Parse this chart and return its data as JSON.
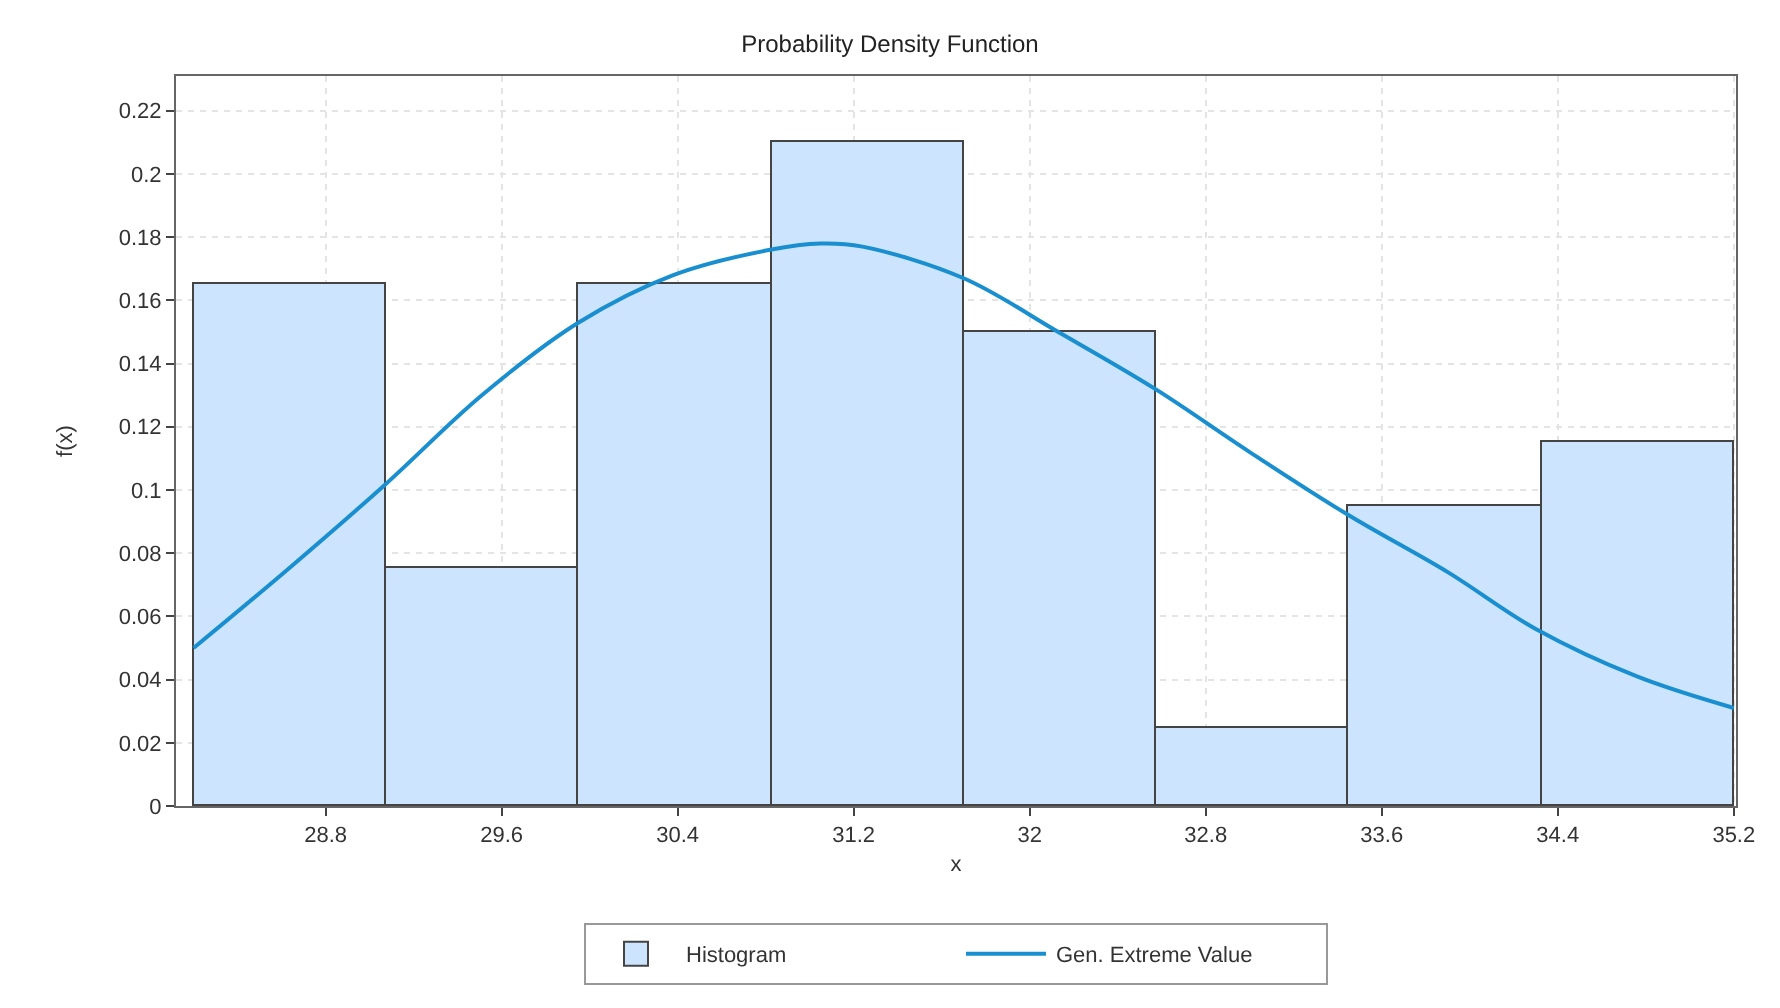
{
  "chart_data": {
    "type": "histogram",
    "title": "Probability Density Function",
    "xlabel": "x",
    "ylabel": "f(x)",
    "xlim": [
      28.12,
      35.21
    ],
    "ylim": [
      0,
      0.231
    ],
    "xticks": [
      28.8,
      29.6,
      30.4,
      31.2,
      32,
      32.8,
      33.6,
      34.4,
      35.2
    ],
    "yticks": [
      0,
      0.02,
      0.04,
      0.06,
      0.08,
      0.1,
      0.12,
      0.14,
      0.16,
      0.18,
      0.2,
      0.22
    ],
    "grid": true,
    "legend": "bottom",
    "series": [
      {
        "name": "Histogram",
        "color": "#cce4fd",
        "bins": [
          28.2,
          29.075,
          29.95,
          30.825,
          31.7,
          32.575,
          33.45,
          34.325,
          35.2
        ],
        "values": [
          0.165,
          0.075,
          0.165,
          0.21,
          0.15,
          0.025,
          0.095,
          0.115
        ]
      },
      {
        "type": "line",
        "name": "Gen. Extreme Value",
        "color": "#1a8fcf",
        "x": [
          28.2,
          28.63,
          29.075,
          29.51,
          29.95,
          30.38,
          30.82,
          31.05,
          31.24,
          31.7,
          32.13,
          32.57,
          33.0,
          33.45,
          33.9,
          34.3,
          34.76,
          35.2
        ],
        "values": [
          0.05,
          0.075,
          0.102,
          0.13,
          0.153,
          0.168,
          0.176,
          0.178,
          0.177,
          0.167,
          0.15,
          0.132,
          0.112,
          0.092,
          0.074,
          0.056,
          0.041,
          0.031
        ]
      }
    ]
  }
}
